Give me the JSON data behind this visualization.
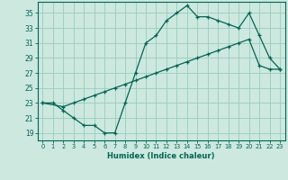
{
  "xlabel": "Humidex (Indice chaleur)",
  "background_color": "#cce8df",
  "grid_color": "#99ccbb",
  "line_color": "#006655",
  "xlim": [
    -0.5,
    23.5
  ],
  "ylim": [
    18.0,
    36.5
  ],
  "xticks": [
    0,
    1,
    2,
    3,
    4,
    5,
    6,
    7,
    8,
    9,
    10,
    11,
    12,
    13,
    14,
    15,
    16,
    17,
    18,
    19,
    20,
    21,
    22,
    23
  ],
  "yticks": [
    19,
    21,
    23,
    25,
    27,
    29,
    31,
    33,
    35
  ],
  "line1_x": [
    0,
    1,
    2,
    3,
    4,
    5,
    6,
    7,
    8,
    9,
    10,
    11,
    12,
    13,
    14,
    15,
    16,
    17,
    18,
    19,
    20,
    21,
    22,
    23
  ],
  "line1_y": [
    23,
    23,
    22,
    21,
    20,
    20,
    19,
    19,
    23,
    27,
    31,
    32,
    34,
    35,
    36,
    34.5,
    34.5,
    34,
    33.5,
    33,
    35,
    32,
    29,
    27.5
  ],
  "line2_x": [
    0,
    2,
    3,
    4,
    5,
    6,
    7,
    8,
    9,
    10,
    11,
    12,
    13,
    14,
    15,
    16,
    17,
    18,
    19,
    20,
    21,
    22,
    23
  ],
  "line2_y": [
    23,
    22.5,
    23,
    23.5,
    24,
    24.5,
    25,
    25.5,
    26,
    26.5,
    27,
    27.5,
    28,
    28.5,
    29,
    29.5,
    30,
    30.5,
    31,
    31.5,
    28,
    27.5,
    27.5
  ]
}
